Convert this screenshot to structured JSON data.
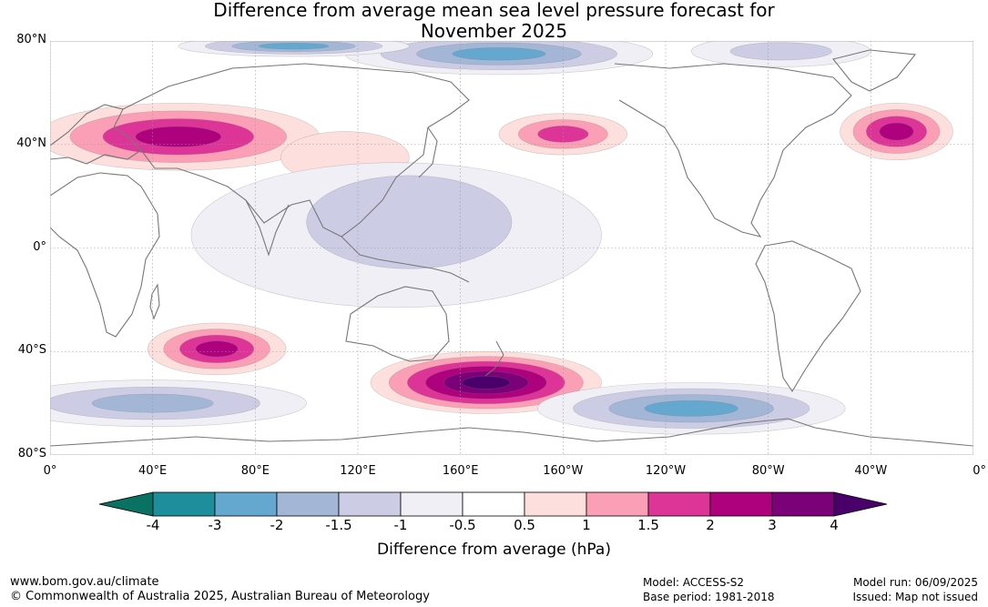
{
  "title_line1": "Difference from average mean sea level pressure forecast for",
  "title_line2": "November 2025",
  "map": {
    "lat_labels": [
      {
        "text": "80°N",
        "lat": 80
      },
      {
        "text": "40°N",
        "lat": 40
      },
      {
        "text": "0°",
        "lat": 0
      },
      {
        "text": "40°S",
        "lat": -40
      },
      {
        "text": "80°S",
        "lat": -80
      }
    ],
    "lon_labels": [
      {
        "text": "0°",
        "lon": 0
      },
      {
        "text": "40°E",
        "lon": 40
      },
      {
        "text": "80°E",
        "lon": 80
      },
      {
        "text": "120°E",
        "lon": 120
      },
      {
        "text": "160°E",
        "lon": 160
      },
      {
        "text": "160°W",
        "lon": 200
      },
      {
        "text": "120°W",
        "lon": 240
      },
      {
        "text": "80°W",
        "lon": 280
      },
      {
        "text": "40°W",
        "lon": 320
      },
      {
        "text": "0°",
        "lon": 360
      }
    ],
    "anomaly_regions": [
      {
        "name": "arctic-pacific-low",
        "lon": 175,
        "lat": 75,
        "rlon": 60,
        "rlat": 8,
        "levels": [
          -0.5,
          -1,
          -1.5,
          -2
        ]
      },
      {
        "name": "arctic-asia-low",
        "lon": 95,
        "lat": 78,
        "rlon": 45,
        "rlat": 4,
        "levels": [
          -0.5,
          -1,
          -1.5,
          -2
        ]
      },
      {
        "name": "arctic-canada-low",
        "lon": 285,
        "lat": 76,
        "rlon": 35,
        "rlat": 6,
        "levels": [
          -0.5,
          -1
        ]
      },
      {
        "name": "eurasia-high",
        "lon": 50,
        "lat": 43,
        "rlon": 55,
        "rlat": 13,
        "levels": [
          0.5,
          1,
          1.5,
          2
        ]
      },
      {
        "name": "east-asia-high",
        "lon": 115,
        "lat": 35,
        "rlon": 25,
        "rlat": 10,
        "levels": [
          0.5
        ]
      },
      {
        "name": "north-pacific-high",
        "lon": 200,
        "lat": 44,
        "rlon": 25,
        "rlat": 8,
        "levels": [
          0.5,
          1,
          1.5
        ]
      },
      {
        "name": "north-atlantic-high",
        "lon": 330,
        "lat": 45,
        "rlon": 22,
        "rlat": 11,
        "levels": [
          0.5,
          1,
          1.5,
          2
        ]
      },
      {
        "name": "tropical-indopacific-low",
        "lon": 135,
        "lat": 5,
        "rlon": 80,
        "rlat": 28,
        "levels": [
          -0.5
        ]
      },
      {
        "name": "west-pacific-low",
        "lon": 140,
        "lat": 10,
        "rlon": 40,
        "rlat": 18,
        "levels": [
          -1
        ]
      },
      {
        "name": "south-indian-high",
        "lon": 65,
        "lat": -39,
        "rlon": 27,
        "rlat": 10,
        "levels": [
          0.5,
          1,
          1.5,
          2
        ]
      },
      {
        "name": "nz-high",
        "lon": 170,
        "lat": -52,
        "rlon": 45,
        "rlat": 12,
        "levels": [
          0.5,
          1,
          1.5,
          2,
          3,
          4
        ]
      },
      {
        "name": "southern-ocean-low-west",
        "lon": 40,
        "lat": -60,
        "rlon": 60,
        "rlat": 9,
        "levels": [
          -0.5,
          -1,
          -1.5
        ]
      },
      {
        "name": "south-pacific-low",
        "lon": 250,
        "lat": -62,
        "rlon": 60,
        "rlat": 10,
        "levels": [
          -0.5,
          -1,
          -1.5,
          -2
        ]
      }
    ]
  },
  "colorbar": {
    "colors": [
      "#0a7262",
      "#1f8e9c",
      "#64a7cf",
      "#a3b6d6",
      "#cccde4",
      "#f1eff6",
      "#ffffff",
      "#fde0dd",
      "#fa9fb5",
      "#dd3497",
      "#ae017e",
      "#7a0177",
      "#49006a"
    ],
    "ticks": [
      "-4",
      "-3",
      "-2",
      "-1.5",
      "-1",
      "-0.5",
      "0.5",
      "1",
      "1.5",
      "2",
      "3",
      "4"
    ],
    "label": "Difference from average (hPa)"
  },
  "footer": {
    "website": "www.bom.gov.au/climate",
    "copyright": "© Commonwealth of Australia 2025, Australian Bureau of Meteorology",
    "model": "Model: ACCESS-S2",
    "base_period": "Base period: 1981-2018",
    "model_run": "Model run: 06/09/2025",
    "issued": "Issued: Map not issued"
  }
}
